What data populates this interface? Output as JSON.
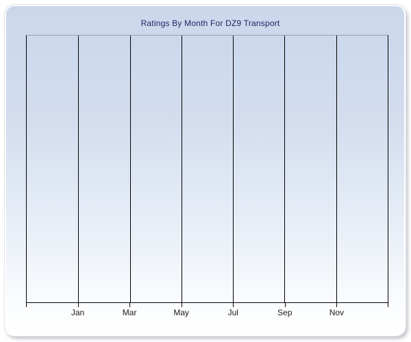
{
  "chart_data": {
    "type": "line",
    "title": "Ratings By Month For DZ9 Transport",
    "x_tick_labels": [
      "Jan",
      "Mar",
      "May",
      "Jul",
      "Sep",
      "Nov"
    ],
    "y_tick_labels": [],
    "series": [],
    "layout": {
      "grid": "vertical-only",
      "legend": "none",
      "plot_empty": true,
      "x_intervals": 7
    }
  },
  "colors": {
    "panel_gradient_top": "#ccd9ec",
    "panel_gradient_bottom": "#ffffff",
    "gridline": "#000000",
    "axis_line": "#000000",
    "plot_top_border": "#99a1ad",
    "title_text": "#1f1f5f",
    "axis_label_text": "#1a1a1a"
  }
}
